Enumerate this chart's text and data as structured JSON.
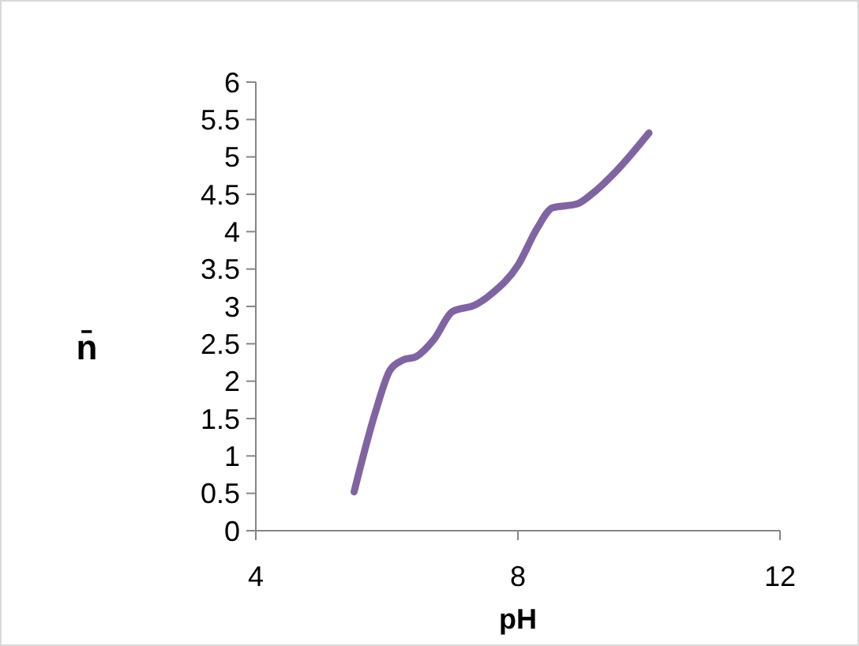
{
  "chart_data": {
    "type": "line",
    "xlabel": "pH",
    "ylabel": "n̄",
    "x": [
      5.5,
      5.83,
      6.05,
      6.24,
      6.45,
      6.72,
      7.0,
      7.35,
      7.6,
      8.0,
      8.29,
      8.53,
      8.9,
      9.15,
      9.49,
      10.0
    ],
    "series": [
      {
        "color": "#8064a2",
        "values": [
          0.52,
          1.6,
          2.15,
          2.28,
          2.33,
          2.56,
          2.93,
          3.02,
          3.17,
          3.55,
          4.04,
          4.32,
          4.37,
          4.52,
          4.8,
          5.32
        ]
      }
    ],
    "xlim": [
      4,
      12
    ],
    "xticks": [
      4,
      8,
      12
    ],
    "ylim": [
      0,
      6
    ],
    "yticks": [
      0,
      0.5,
      1,
      1.5,
      2,
      2.5,
      3,
      3.5,
      4,
      4.5,
      5,
      5.5,
      6
    ],
    "grid": false,
    "marker": "none",
    "line_style": "solid"
  }
}
